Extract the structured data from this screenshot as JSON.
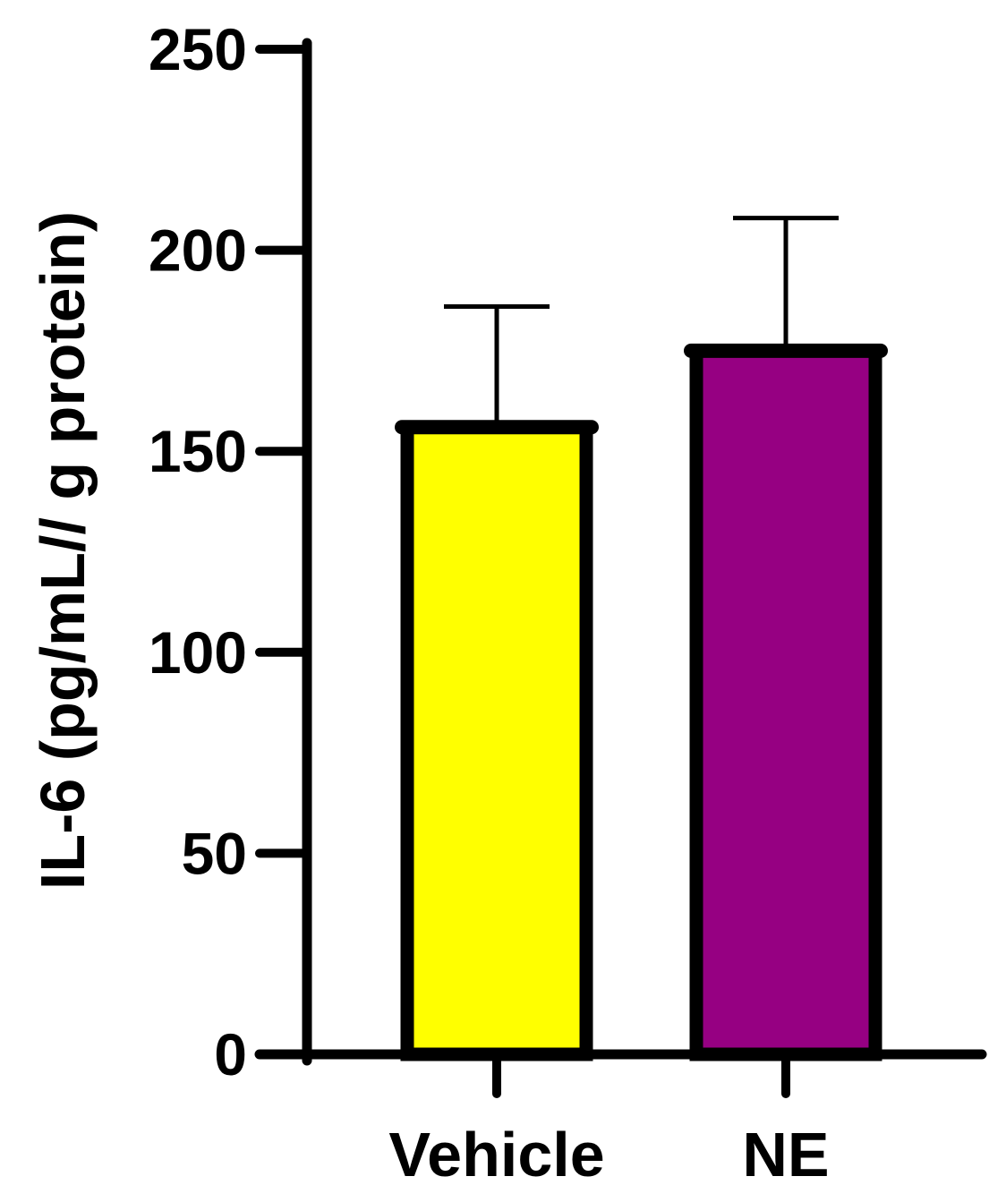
{
  "chart_data": {
    "type": "bar",
    "categories": [
      "Vehicle",
      "NE"
    ],
    "values": [
      156,
      175
    ],
    "errors": [
      30,
      33
    ],
    "colors": [
      "#ffff00",
      "#960082"
    ],
    "ylabel": "IL-6 (pg/mL// g protein)",
    "xlabel": "",
    "ylim": [
      0,
      250
    ],
    "yticks": [
      0,
      50,
      100,
      150,
      200,
      250
    ],
    "ytick_labels": [
      "0",
      "50",
      "100",
      "150",
      "200",
      "250"
    ],
    "error_bar": "upper only",
    "grid": false
  }
}
